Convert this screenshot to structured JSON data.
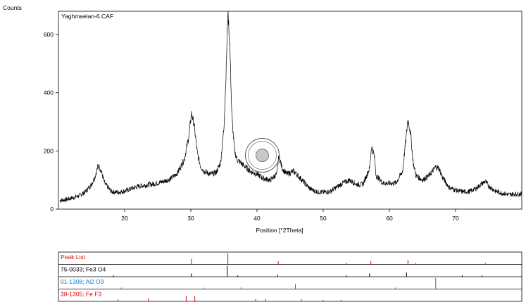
{
  "chart_data": [
    {
      "type": "line",
      "title": "Yaghmaeian-6.CAF",
      "ylabel": "Counts",
      "xlabel": "Position [°2Theta]",
      "xlim": [
        10,
        80
      ],
      "ylim": [
        0,
        680
      ],
      "x_ticks": [
        20,
        30,
        40,
        50,
        60,
        70
      ],
      "y_ticks": [
        0,
        200,
        400,
        600
      ],
      "grid": false,
      "legend": "none",
      "line_color": "#000000",
      "series": [
        {
          "baseline": [
            [
              10.2,
              30
            ],
            [
              11,
              32
            ],
            [
              12,
              38
            ],
            [
              13,
              45
            ],
            [
              14,
              58
            ],
            [
              15,
              85
            ],
            [
              15.5,
              110
            ],
            [
              16,
              150
            ],
            [
              16.4,
              135
            ],
            [
              17,
              88
            ],
            [
              18,
              60
            ],
            [
              19,
              58
            ],
            [
              20,
              62
            ],
            [
              21,
              70
            ],
            [
              22,
              78
            ],
            [
              23,
              82
            ],
            [
              24,
              85
            ],
            [
              25,
              90
            ],
            [
              26,
              96
            ],
            [
              27,
              105
            ],
            [
              28,
              125
            ],
            [
              29,
              170
            ],
            [
              29.7,
              250
            ],
            [
              30.1,
              330
            ],
            [
              30.5,
              290
            ],
            [
              31,
              190
            ],
            [
              31.5,
              145
            ],
            [
              32,
              130
            ],
            [
              33,
              120
            ],
            [
              33.8,
              125
            ],
            [
              34.5,
              160
            ],
            [
              35,
              280
            ],
            [
              35.3,
              450
            ],
            [
              35.6,
              685
            ],
            [
              35.9,
              560
            ],
            [
              36.2,
              320
            ],
            [
              36.6,
              200
            ],
            [
              37,
              170
            ],
            [
              37.5,
              160
            ],
            [
              38,
              150
            ],
            [
              38.5,
              140
            ],
            [
              39,
              130
            ],
            [
              40,
              120
            ],
            [
              41,
              105
            ],
            [
              42,
              100
            ],
            [
              43,
              120
            ],
            [
              43.3,
              185
            ],
            [
              43.8,
              140
            ],
            [
              44.5,
              120
            ],
            [
              45,
              125
            ],
            [
              45.5,
              130
            ],
            [
              46,
              120
            ],
            [
              47,
              95
            ],
            [
              48,
              70
            ],
            [
              49,
              60
            ],
            [
              50,
              58
            ],
            [
              51,
              60
            ],
            [
              52,
              75
            ],
            [
              53,
              90
            ],
            [
              54,
              100
            ],
            [
              55,
              85
            ],
            [
              56,
              85
            ],
            [
              57,
              140
            ],
            [
              57.3,
              215
            ],
            [
              57.7,
              185
            ],
            [
              58,
              115
            ],
            [
              59,
              90
            ],
            [
              60,
              88
            ],
            [
              61,
              90
            ],
            [
              62,
              130
            ],
            [
              62.5,
              240
            ],
            [
              62.8,
              310
            ],
            [
              63.2,
              260
            ],
            [
              63.6,
              160
            ],
            [
              64,
              115
            ],
            [
              65,
              100
            ],
            [
              66,
              115
            ],
            [
              67,
              145
            ],
            [
              67.5,
              140
            ],
            [
              68,
              110
            ],
            [
              69,
              75
            ],
            [
              70,
              65
            ],
            [
              71,
              60
            ],
            [
              72,
              60
            ],
            [
              73,
              70
            ],
            [
              74,
              88
            ],
            [
              74.5,
              95
            ],
            [
              75,
              80
            ],
            [
              76,
              62
            ],
            [
              77,
              55
            ],
            [
              78,
              50
            ],
            [
              79,
              52
            ],
            [
              80,
              52
            ]
          ],
          "noise_amplitude": 12
        }
      ]
    },
    {
      "type": "peak_list",
      "title": "Peak List",
      "xlim": [
        10,
        80
      ],
      "rows": [
        {
          "label": "Peak List",
          "color": "#e00000",
          "peaks": [
            [
              30.1,
              0.5
            ],
            [
              35.6,
              1.0
            ],
            [
              43.2,
              0.3
            ],
            [
              53.5,
              0.15
            ],
            [
              57.2,
              0.3
            ],
            [
              62.8,
              0.4
            ],
            [
              64,
              0.12
            ],
            [
              74.5,
              0.12
            ]
          ]
        },
        {
          "label": "75-0033; Fe3 O4",
          "color": "#000000",
          "peaks": [
            [
              18.3,
              0.1
            ],
            [
              30.1,
              0.3
            ],
            [
              35.5,
              1.0
            ],
            [
              37.1,
              0.1
            ],
            [
              43.1,
              0.2
            ],
            [
              53.5,
              0.1
            ],
            [
              57,
              0.3
            ],
            [
              62.6,
              0.4
            ],
            [
              71,
              0.1
            ],
            [
              74,
              0.1
            ]
          ]
        },
        {
          "label": "01-1308; Al2 O3",
          "color": "#0078d4",
          "peaks": [
            [
              19.5,
              0.05
            ],
            [
              31.9,
              0.1
            ],
            [
              37.6,
              0.15
            ],
            [
              45.8,
              0.45
            ],
            [
              60.9,
              0.05
            ],
            [
              67,
              1.0
            ]
          ]
        },
        {
          "label": "38-1305; Fe F3",
          "color": "#e00000",
          "peaks": [
            [
              19,
              0.15
            ],
            [
              23.6,
              0.3
            ],
            [
              29.3,
              0.5
            ],
            [
              30.6,
              0.5
            ],
            [
              39.8,
              0.2
            ],
            [
              41.3,
              0.2
            ],
            [
              46.7,
              0.2
            ],
            [
              50,
              0.1
            ],
            [
              52.7,
              0.1
            ]
          ]
        }
      ]
    }
  ],
  "cursor": {
    "x": 40.8,
    "y": 185
  }
}
